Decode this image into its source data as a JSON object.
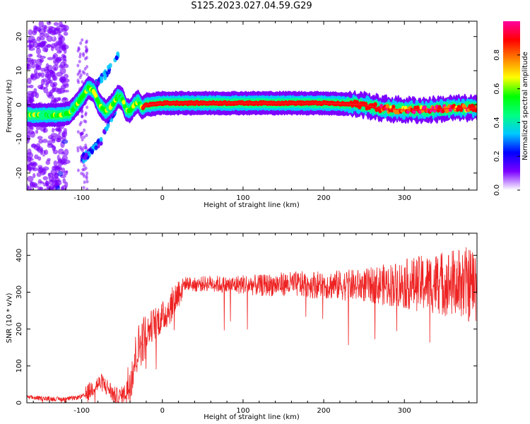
{
  "title": "S125.2023.027.04.59.G29",
  "chart_data": [
    {
      "type": "heatmap",
      "title": "S125.2023.027.04.59.G29",
      "xlabel": "Height of straight line (km)",
      "ylabel": "Frequency (Hz)",
      "xlim": [
        -168,
        390
      ],
      "ylim": [
        -25,
        24.5
      ],
      "xticks": [
        -100,
        0,
        100,
        200,
        300
      ],
      "yticks": [
        -20,
        -10,
        0,
        10,
        20
      ],
      "colorbar": {
        "label": "Normalized spectral amplitude",
        "range": [
          0,
          1
        ],
        "ticks": [
          0.0,
          0.2,
          0.4,
          0.6,
          0.8
        ],
        "colormap": [
          "#ffffff",
          "#7b00ff",
          "#0000ff",
          "#00c8ff",
          "#00ff80",
          "#00ff00",
          "#ffff00",
          "#ff8000",
          "#ff0000",
          "#ff00a0"
        ]
      },
      "ridge": {
        "x": [
          -165,
          -150,
          -130,
          -115,
          -100,
          -92,
          -85,
          -78,
          -70,
          -62,
          -55,
          -50,
          -45,
          -40,
          -35,
          -30,
          -25,
          -20,
          -10,
          0,
          50,
          100,
          150,
          200,
          250,
          270,
          300,
          330,
          360,
          390
        ],
        "y": [
          -3,
          -3,
          -3,
          -2.5,
          2,
          5,
          4,
          0,
          -2,
          0,
          2.5,
          2,
          -1.5,
          -1.8,
          0,
          1,
          -1,
          0,
          0.2,
          0.5,
          0.5,
          0.5,
          0.5,
          0.5,
          0,
          -1,
          -1.5,
          -1.5,
          -1,
          -1
        ]
      },
      "branches": [
        {
          "x": [
            -118,
            -95,
            -85,
            -78,
            -70,
            -65,
            -60,
            -55
          ],
          "y": [
            -3,
            2,
            5,
            7,
            9,
            11,
            13,
            15
          ]
        },
        {
          "x": [
            -100,
            -90,
            -82,
            -75,
            -68,
            -62,
            -56
          ],
          "y": [
            -16,
            -14,
            -12,
            -10,
            -6,
            -3,
            0
          ]
        }
      ]
    },
    {
      "type": "line",
      "xlabel": "Height of straight line (km)",
      "ylabel": "SNR (10 * v/v)",
      "xlim": [
        -168,
        390
      ],
      "ylim": [
        0,
        460
      ],
      "xticks": [
        -100,
        0,
        100,
        200,
        300
      ],
      "yticks": [
        0,
        100,
        200,
        300,
        400
      ],
      "color": "#ee2222",
      "x": [
        -168,
        -150,
        -130,
        -110,
        -95,
        -85,
        -75,
        -65,
        -60,
        -55,
        -50,
        -45,
        -40,
        -35,
        -30,
        -25,
        -20,
        -15,
        -10,
        -5,
        0,
        5,
        10,
        15,
        20,
        25,
        30,
        40,
        60,
        80,
        100,
        120,
        150,
        200,
        250,
        300,
        350,
        390
      ],
      "y": [
        15,
        12,
        10,
        12,
        20,
        45,
        55,
        35,
        20,
        15,
        20,
        30,
        60,
        110,
        150,
        170,
        185,
        205,
        215,
        225,
        230,
        245,
        260,
        280,
        300,
        320,
        325,
        320,
        325,
        318,
        322,
        318,
        322,
        320,
        318,
        322,
        325,
        320
      ]
    }
  ]
}
